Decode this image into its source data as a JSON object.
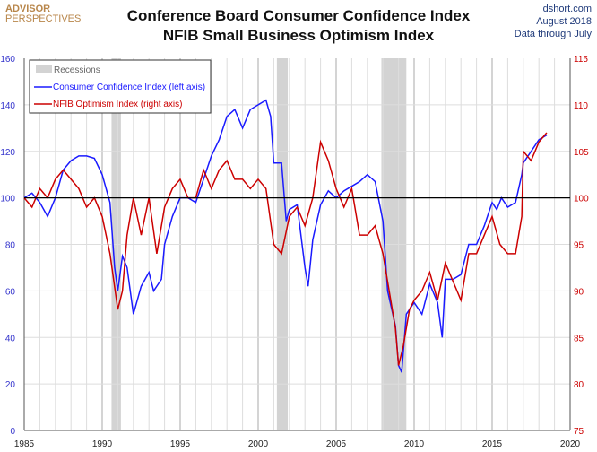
{
  "logo": {
    "line1": "ADVISOR",
    "line2": "PERSPECTIVES"
  },
  "title": {
    "line1": "Conference Board Consumer Confidence Index",
    "line2": "NFIB Small Business Optimism Index"
  },
  "meta": {
    "site": "dshort.com",
    "date": "August 2018",
    "note": "Data through July"
  },
  "colors": {
    "cci": "#1a1aff",
    "nfib": "#cc0000",
    "recession": "#d3d3d3",
    "left_axis": "#3333cc",
    "right_axis": "#cc0000"
  },
  "chart_data": {
    "type": "line",
    "title": "Conference Board Consumer Confidence Index / NFIB Small Business Optimism Index",
    "xlim": [
      1985,
      2020
    ],
    "x_ticks": [
      1985,
      1990,
      1995,
      2000,
      2005,
      2010,
      2015,
      2020
    ],
    "ylim_left": [
      0,
      160
    ],
    "left_ticks": [
      0,
      20,
      40,
      60,
      80,
      100,
      120,
      140,
      160
    ],
    "ylim_right": [
      75,
      115
    ],
    "right_ticks": [
      75,
      80,
      85,
      90,
      95,
      100,
      105,
      110,
      115
    ],
    "reference_line_left": 100,
    "legend": {
      "placement": "top-left",
      "recessions": "Recessions",
      "cci": "Consumer Confidence Index (left axis)",
      "nfib": "NFIB Optimism Index (right axis)"
    },
    "recessions": [
      [
        1990.6,
        1991.2
      ],
      [
        2001.2,
        2001.9
      ],
      [
        2007.9,
        2009.5
      ]
    ],
    "series": [
      {
        "name": "Consumer Confidence Index (left axis)",
        "axis": "left",
        "x": [
          1985,
          1985.5,
          1986,
          1986.5,
          1987,
          1987.5,
          1988,
          1988.5,
          1989,
          1989.5,
          1990,
          1990.5,
          1990.8,
          1991,
          1991.3,
          1991.6,
          1992,
          1992.5,
          1993,
          1993.3,
          1993.8,
          1994,
          1994.5,
          1995,
          1995.5,
          1996,
          1996.5,
          1997,
          1997.5,
          1998,
          1998.5,
          1999,
          1999.5,
          2000,
          2000.5,
          2000.8,
          2001,
          2001.5,
          2001.8,
          2002,
          2002.5,
          2003,
          2003.2,
          2003.5,
          2004,
          2004.5,
          2005,
          2005.5,
          2006,
          2006.5,
          2007,
          2007.5,
          2008,
          2008.3,
          2008.8,
          2009,
          2009.2,
          2009.5,
          2010,
          2010.5,
          2011,
          2011.5,
          2011.8,
          2012,
          2012.5,
          2013,
          2013.5,
          2014,
          2014.5,
          2015,
          2015.3,
          2015.6,
          2016,
          2016.5,
          2016.9,
          2017,
          2017.5,
          2018,
          2018.5
        ],
        "values": [
          100,
          102,
          98,
          92,
          100,
          112,
          116,
          118,
          118,
          117,
          110,
          98,
          70,
          60,
          75,
          70,
          50,
          62,
          68,
          60,
          65,
          80,
          92,
          100,
          100,
          98,
          108,
          118,
          125,
          135,
          138,
          130,
          138,
          140,
          142,
          135,
          115,
          115,
          90,
          95,
          97,
          70,
          62,
          82,
          97,
          103,
          100,
          103,
          105,
          107,
          110,
          107,
          90,
          60,
          45,
          28,
          25,
          50,
          55,
          50,
          63,
          55,
          40,
          65,
          65,
          67,
          80,
          80,
          88,
          98,
          95,
          100,
          96,
          98,
          110,
          115,
          120,
          125,
          127
        ]
      },
      {
        "name": "NFIB Optimism Index (right axis)",
        "axis": "right",
        "x": [
          1985,
          1985.5,
          1986,
          1986.5,
          1987,
          1987.5,
          1988,
          1988.5,
          1989,
          1989.5,
          1990,
          1990.5,
          1991,
          1991.3,
          1991.6,
          1992,
          1992.5,
          1993,
          1993.5,
          1994,
          1994.5,
          1995,
          1995.5,
          1996,
          1996.5,
          1997,
          1997.5,
          1998,
          1998.5,
          1999,
          1999.5,
          2000,
          2000.5,
          2001,
          2001.5,
          2002,
          2002.5,
          2003,
          2003.5,
          2004,
          2004.5,
          2005,
          2005.5,
          2006,
          2006.5,
          2007,
          2007.5,
          2008,
          2008.5,
          2008.8,
          2009,
          2009.3,
          2009.7,
          2010,
          2010.5,
          2011,
          2011.5,
          2012,
          2012.5,
          2013,
          2013.5,
          2014,
          2014.5,
          2015,
          2015.5,
          2016,
          2016.5,
          2016.9,
          2017,
          2017.5,
          2018,
          2018.5
        ],
        "values": [
          100,
          99,
          101,
          100,
          102,
          103,
          102,
          101,
          99,
          100,
          98,
          94,
          88,
          90,
          96,
          100,
          96,
          100,
          94,
          99,
          101,
          102,
          100,
          100,
          103,
          101,
          103,
          104,
          102,
          102,
          101,
          102,
          101,
          95,
          94,
          98,
          99,
          97,
          100,
          106,
          104,
          101,
          99,
          101,
          96,
          96,
          97,
          94,
          89,
          86,
          82,
          84,
          88,
          89,
          90,
          92,
          89,
          93,
          91,
          89,
          94,
          94,
          96,
          98,
          95,
          94,
          94,
          98,
          105,
          104,
          106,
          107
        ]
      }
    ]
  }
}
